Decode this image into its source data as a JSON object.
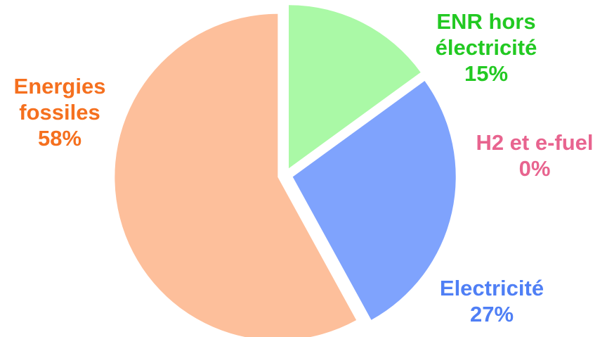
{
  "chart_data": {
    "type": "pie",
    "title": "",
    "start": "top, clockwise, slices separated",
    "slices": [
      {
        "key": "enr",
        "label_lines": [
          "ENR hors",
          "électricité"
        ],
        "value_label": "15%",
        "value": 15,
        "color": "#aaf9a6",
        "text_color": "#22c922"
      },
      {
        "key": "h2",
        "label_lines": [
          "H2 et e-fuel"
        ],
        "value_label": "0%",
        "value": 0,
        "color": "#f08fb0",
        "text_color": "#e8648f"
      },
      {
        "key": "elec",
        "label_lines": [
          "Electricité"
        ],
        "value_label": "27%",
        "value": 27,
        "color": "#7fa3fd",
        "text_color": "#4f7ff5"
      },
      {
        "key": "fossiles",
        "label_lines": [
          "Energies",
          "fossiles"
        ],
        "value_label": "58%",
        "value": 58,
        "color": "#fdbf9b",
        "text_color": "#f5701f"
      }
    ]
  }
}
